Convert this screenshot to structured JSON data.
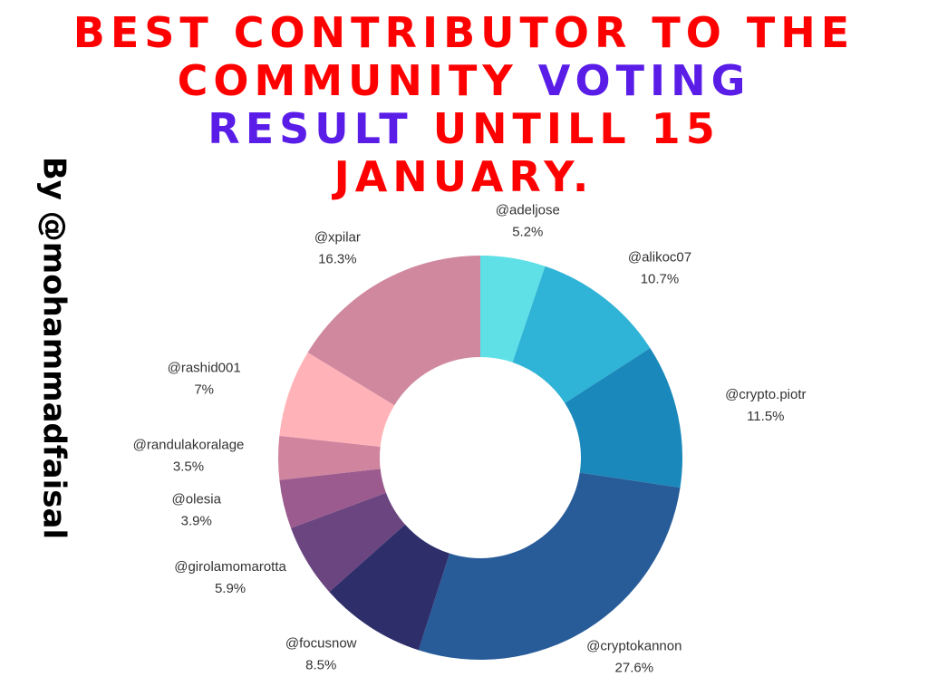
{
  "chart_data": {
    "type": "donut",
    "title": [
      [
        {
          "text": "BEST CONTRIBUTOR TO THE",
          "color": "#ff0000"
        }
      ],
      [
        {
          "text": "COMMUNITY",
          "color": "#ff0000"
        },
        {
          "text": "VOTING",
          "color": "#5a1de8"
        }
      ],
      [
        {
          "text": "RESULT",
          "color": "#5a1de8"
        },
        {
          "text": "UNTILL 15",
          "color": "#ff0000"
        }
      ],
      [
        {
          "text": "JANUARY.",
          "color": "#ff0000"
        }
      ]
    ],
    "side_text": "By @mohammadfaisal",
    "categories": [
      "@adeljose",
      "@alikoc07",
      "@crypto.piotr",
      "@cryptokannon",
      "@focusnow",
      "@girolamomarotta",
      "@olesia",
      "@randulakoralage",
      "@rashid001",
      "@xpilar"
    ],
    "values": [
      5.2,
      10.7,
      11.5,
      27.6,
      8.5,
      5.9,
      3.9,
      3.5,
      7,
      16.3
    ],
    "value_labels": [
      "5.2%",
      "10.7%",
      "11.5%",
      "27.6%",
      "8.5%",
      "5.9%",
      "3.9%",
      "3.5%",
      "7%",
      "16.3%"
    ],
    "colors": [
      "#5ee0e6",
      "#2fb3d6",
      "#1a88bb",
      "#275c99",
      "#2e2e6b",
      "#6a4580",
      "#9b5b8e",
      "#d0849e",
      "#ffb3b8",
      "#d0889e"
    ]
  }
}
